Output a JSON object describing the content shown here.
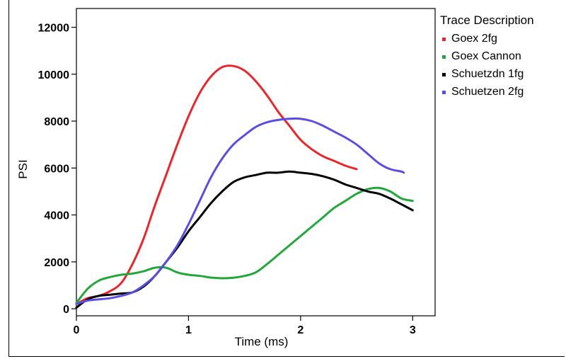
{
  "chart_data": {
    "type": "line",
    "title": "",
    "xlabel": "Time (ms)",
    "ylabel": "PSI",
    "xlim": [
      0,
      3.2
    ],
    "ylim": [
      -300,
      12800
    ],
    "xticks": [
      0,
      1,
      2,
      3
    ],
    "yticks": [
      0,
      2000,
      4000,
      6000,
      8000,
      10000,
      12000
    ],
    "grid": false,
    "legend": {
      "title": "Trace Description",
      "position": "right"
    },
    "series": [
      {
        "name": "Goex 2fg",
        "color": "#e8262b",
        "points": [
          [
            0,
            200
          ],
          [
            0.1,
            450
          ],
          [
            0.2,
            550
          ],
          [
            0.3,
            750
          ],
          [
            0.4,
            1100
          ],
          [
            0.5,
            1900
          ],
          [
            0.6,
            3000
          ],
          [
            0.7,
            4400
          ],
          [
            0.8,
            5700
          ],
          [
            0.9,
            7000
          ],
          [
            1.0,
            8200
          ],
          [
            1.1,
            9200
          ],
          [
            1.2,
            9900
          ],
          [
            1.3,
            10300
          ],
          [
            1.4,
            10350
          ],
          [
            1.5,
            10150
          ],
          [
            1.6,
            9700
          ],
          [
            1.7,
            9100
          ],
          [
            1.8,
            8400
          ],
          [
            1.9,
            7800
          ],
          [
            2.0,
            7200
          ],
          [
            2.1,
            6800
          ],
          [
            2.2,
            6500
          ],
          [
            2.3,
            6300
          ],
          [
            2.4,
            6100
          ],
          [
            2.5,
            5950
          ]
        ]
      },
      {
        "name": "Goex Cannon",
        "color": "#22a83a",
        "points": [
          [
            0,
            250
          ],
          [
            0.1,
            850
          ],
          [
            0.2,
            1200
          ],
          [
            0.3,
            1350
          ],
          [
            0.4,
            1450
          ],
          [
            0.5,
            1500
          ],
          [
            0.6,
            1600
          ],
          [
            0.7,
            1750
          ],
          [
            0.8,
            1750
          ],
          [
            0.9,
            1550
          ],
          [
            1.0,
            1450
          ],
          [
            1.1,
            1400
          ],
          [
            1.2,
            1330
          ],
          [
            1.3,
            1300
          ],
          [
            1.4,
            1320
          ],
          [
            1.5,
            1400
          ],
          [
            1.6,
            1550
          ],
          [
            1.7,
            1900
          ],
          [
            1.8,
            2300
          ],
          [
            1.9,
            2700
          ],
          [
            2.0,
            3100
          ],
          [
            2.1,
            3500
          ],
          [
            2.2,
            3900
          ],
          [
            2.3,
            4300
          ],
          [
            2.4,
            4600
          ],
          [
            2.5,
            4900
          ],
          [
            2.6,
            5100
          ],
          [
            2.7,
            5150
          ],
          [
            2.8,
            5000
          ],
          [
            2.9,
            4700
          ],
          [
            3.0,
            4600
          ]
        ]
      },
      {
        "name": "Schuetzdn 1fg",
        "color": "#000000",
        "points": [
          [
            0,
            50
          ],
          [
            0.1,
            400
          ],
          [
            0.2,
            550
          ],
          [
            0.3,
            600
          ],
          [
            0.4,
            650
          ],
          [
            0.5,
            700
          ],
          [
            0.6,
            950
          ],
          [
            0.7,
            1400
          ],
          [
            0.8,
            2000
          ],
          [
            0.9,
            2600
          ],
          [
            1.0,
            3300
          ],
          [
            1.1,
            3900
          ],
          [
            1.2,
            4500
          ],
          [
            1.3,
            5000
          ],
          [
            1.4,
            5400
          ],
          [
            1.5,
            5600
          ],
          [
            1.6,
            5700
          ],
          [
            1.7,
            5800
          ],
          [
            1.8,
            5800
          ],
          [
            1.9,
            5850
          ],
          [
            2.0,
            5800
          ],
          [
            2.1,
            5750
          ],
          [
            2.2,
            5650
          ],
          [
            2.3,
            5500
          ],
          [
            2.4,
            5300
          ],
          [
            2.5,
            5150
          ],
          [
            2.6,
            5000
          ],
          [
            2.7,
            4900
          ],
          [
            2.8,
            4700
          ],
          [
            2.9,
            4450
          ],
          [
            3.0,
            4200
          ]
        ]
      },
      {
        "name": "Schuetzen 2fg",
        "color": "#5b4de3",
        "points": [
          [
            0,
            200
          ],
          [
            0.1,
            350
          ],
          [
            0.2,
            400
          ],
          [
            0.3,
            450
          ],
          [
            0.4,
            550
          ],
          [
            0.5,
            700
          ],
          [
            0.6,
            1000
          ],
          [
            0.7,
            1400
          ],
          [
            0.8,
            2000
          ],
          [
            0.9,
            2700
          ],
          [
            1.0,
            3600
          ],
          [
            1.1,
            4600
          ],
          [
            1.2,
            5600
          ],
          [
            1.3,
            6400
          ],
          [
            1.4,
            7000
          ],
          [
            1.5,
            7400
          ],
          [
            1.6,
            7750
          ],
          [
            1.7,
            7950
          ],
          [
            1.8,
            8050
          ],
          [
            1.9,
            8100
          ],
          [
            2.0,
            8100
          ],
          [
            2.1,
            8000
          ],
          [
            2.2,
            7800
          ],
          [
            2.3,
            7550
          ],
          [
            2.4,
            7300
          ],
          [
            2.5,
            7000
          ],
          [
            2.6,
            6600
          ],
          [
            2.7,
            6200
          ],
          [
            2.8,
            5950
          ],
          [
            2.9,
            5850
          ],
          [
            2.92,
            5800
          ]
        ]
      }
    ]
  }
}
